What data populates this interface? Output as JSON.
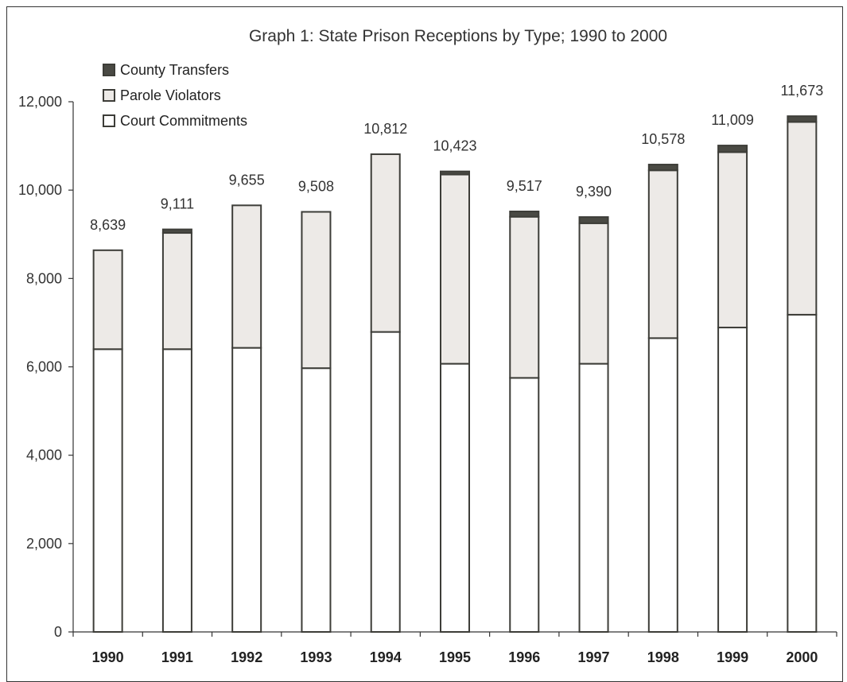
{
  "colors": {
    "court": "#ffffff",
    "parole": "#edeae7",
    "county": "#4a4a44",
    "stroke": "#3d3d38"
  },
  "chart_data": {
    "type": "bar",
    "stacked": true,
    "title": "Graph 1: State Prison Receptions by Type; 1990 to 2000",
    "xlabel": "",
    "ylabel": "",
    "ylim": [
      0,
      12000
    ],
    "yticks": [
      0,
      2000,
      4000,
      6000,
      8000,
      10000,
      12000
    ],
    "ytick_labels": [
      "0",
      "2,000",
      "4,000",
      "6,000",
      "8,000",
      "10,000",
      "12,000"
    ],
    "grid": false,
    "legend": "top-left",
    "categories": [
      "1990",
      "1991",
      "1992",
      "1993",
      "1994",
      "1995",
      "1996",
      "1997",
      "1998",
      "1999",
      "2000"
    ],
    "totals": [
      8639,
      9111,
      9655,
      9508,
      10812,
      10423,
      9517,
      9390,
      10578,
      11009,
      11673
    ],
    "total_labels": [
      "8,639",
      "9,111",
      "9,655",
      "9,508",
      "10,812",
      "10,423",
      "9,517",
      "9,390",
      "10,578",
      "11,009",
      "11,673"
    ],
    "series": [
      {
        "name": "Court Commitments",
        "values": [
          6400,
          6400,
          6430,
          5970,
          6790,
          6070,
          5750,
          6070,
          6650,
          6890,
          7180
        ]
      },
      {
        "name": "Parole Violators",
        "values": [
          2239,
          2631,
          3225,
          3538,
          4022,
          4283,
          3647,
          3180,
          3798,
          3969,
          4363
        ]
      },
      {
        "name": "County Transfers",
        "values": [
          0,
          80,
          0,
          0,
          0,
          70,
          120,
          140,
          130,
          150,
          130
        ]
      }
    ],
    "legend_order": [
      "County Transfers",
      "Parole Violators",
      "Court Commitments"
    ]
  }
}
